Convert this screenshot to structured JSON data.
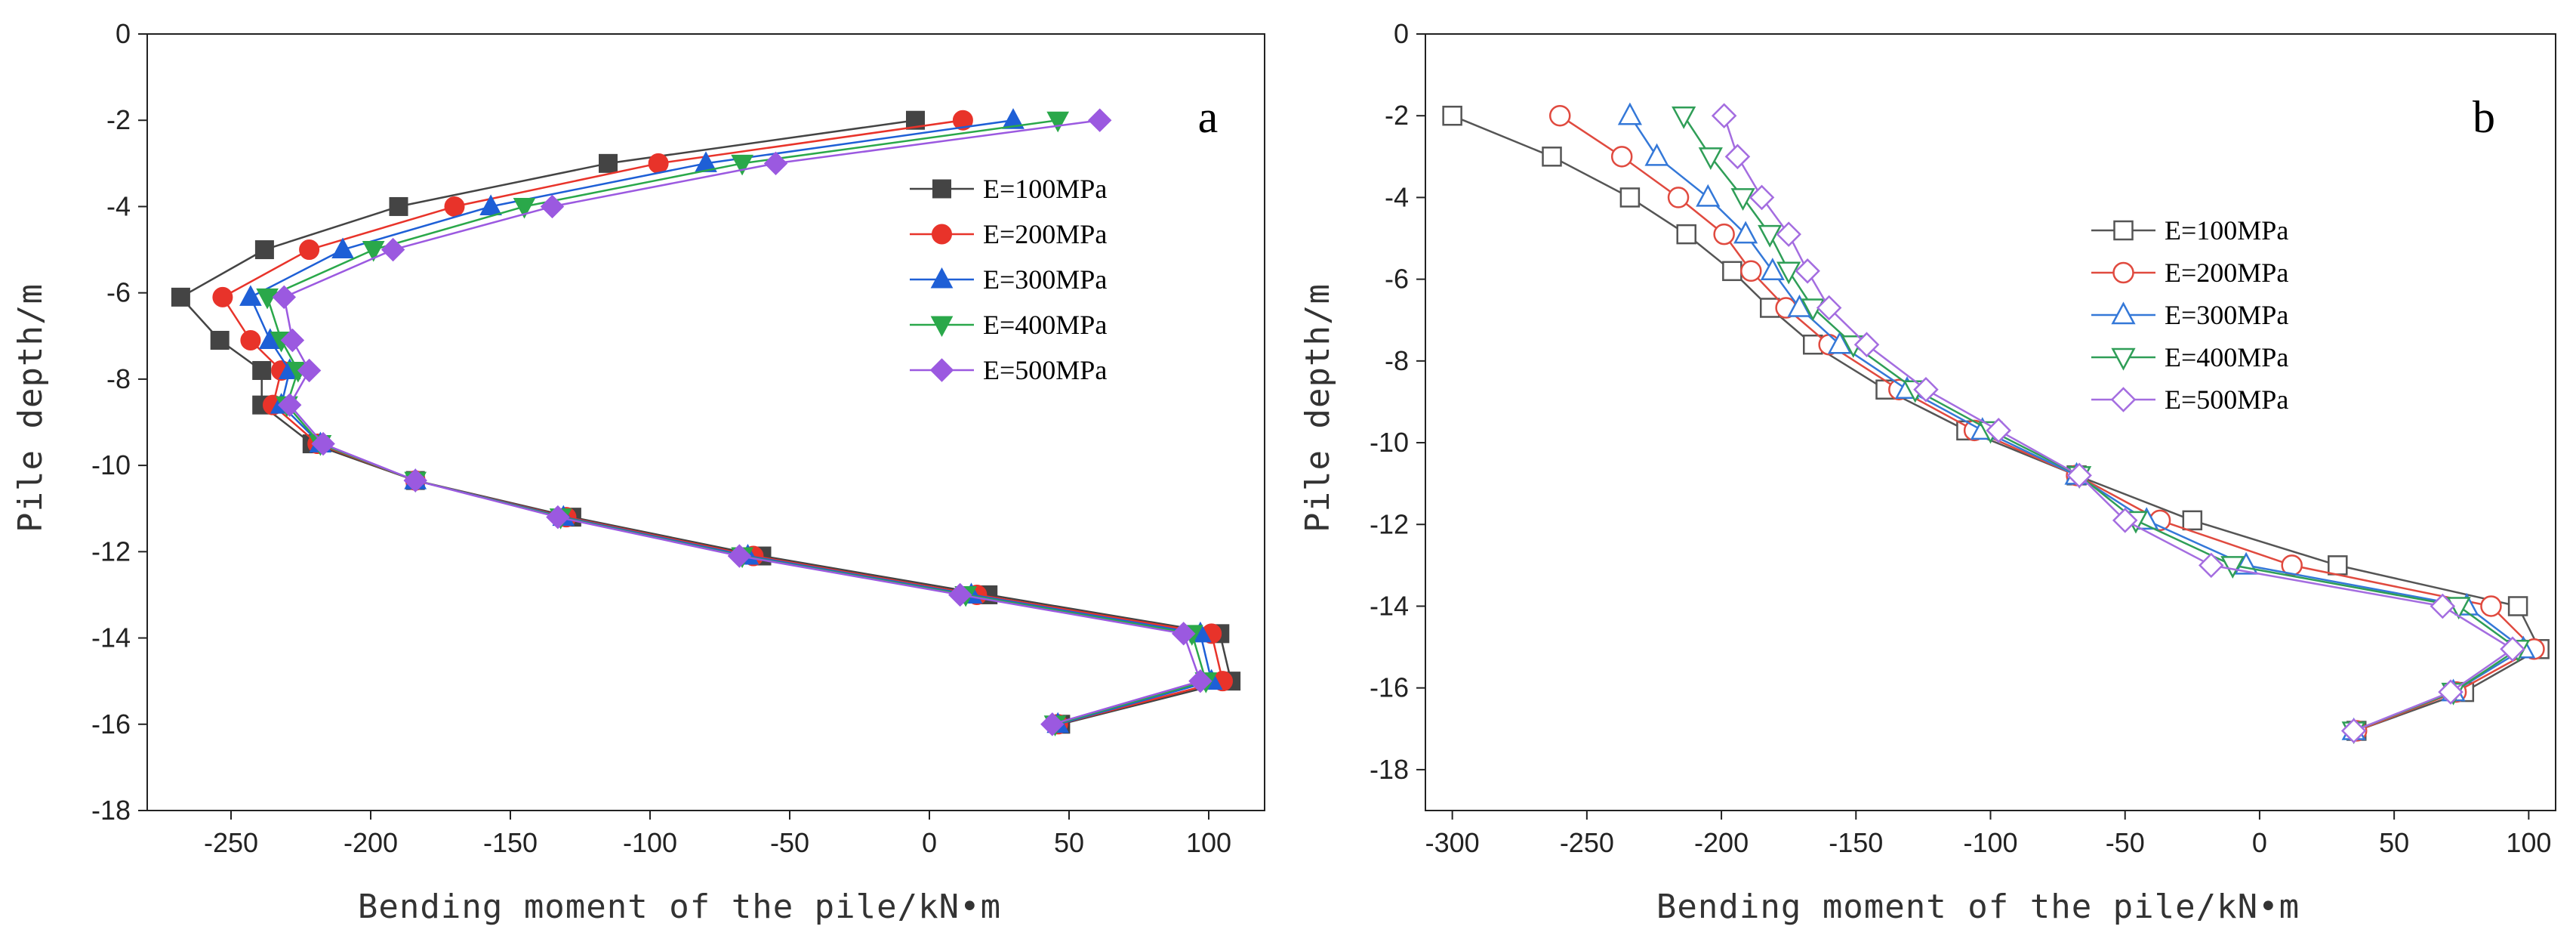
{
  "chart_data": [
    {
      "type": "line",
      "panel_label": "a",
      "xlabel": "Bending moment of the pile/kN•m",
      "ylabel": "Pile depth/m",
      "xlim": [
        -280,
        120
      ],
      "ylim": [
        -18,
        0
      ],
      "xticks": [
        -250,
        -200,
        -150,
        -100,
        -50,
        0,
        50,
        100
      ],
      "xtick_labels": [
        "-250",
        "-200",
        "-150",
        "-100",
        "-50",
        "0",
        "50",
        "100"
      ],
      "yticks": [
        0,
        -2,
        -4,
        -6,
        -8,
        -10,
        -12,
        -14,
        -16,
        -18
      ],
      "ytick_labels": [
        "0",
        "-2",
        "-4",
        "-6",
        "-8",
        "-10",
        "-12",
        "-14",
        "-16",
        "-18"
      ],
      "legend_position": "upper-right",
      "marker_fill": true,
      "series": [
        {
          "name": "E=100MPa",
          "color": "#444444",
          "marker": "square",
          "points": [
            [
              -5,
              -2
            ],
            [
              -115,
              -3
            ],
            [
              -190,
              -4
            ],
            [
              -238,
              -5
            ],
            [
              -268,
              -6.1
            ],
            [
              -254,
              -7.1
            ],
            [
              -239,
              -7.8
            ],
            [
              -239,
              -8.6
            ],
            [
              -221,
              -9.5
            ],
            [
              -184,
              -10.35
            ],
            [
              -128,
              -11.2
            ],
            [
              -60,
              -12.1
            ],
            [
              21,
              -13
            ],
            [
              104,
              -13.9
            ],
            [
              108,
              -15
            ],
            [
              47,
              -16
            ]
          ]
        },
        {
          "name": "E=200MPa",
          "color": "#e8332a",
          "marker": "circle",
          "points": [
            [
              12,
              -2
            ],
            [
              -97,
              -3
            ],
            [
              -170,
              -4
            ],
            [
              -222,
              -5
            ],
            [
              -253,
              -6.1
            ],
            [
              -243,
              -7.1
            ],
            [
              -232,
              -7.8
            ],
            [
              -235,
              -8.6
            ],
            [
              -219,
              -9.5
            ],
            [
              -184,
              -10.35
            ],
            [
              -130,
              -11.2
            ],
            [
              -63,
              -12.1
            ],
            [
              17,
              -13
            ],
            [
              101,
              -13.9
            ],
            [
              105,
              -15
            ],
            [
              46,
              -16
            ]
          ]
        },
        {
          "name": "E=300MPa",
          "color": "#1e5fd6",
          "marker": "triangle-up",
          "points": [
            [
              30,
              -2
            ],
            [
              -80,
              -3
            ],
            [
              -157,
              -4
            ],
            [
              -210,
              -5
            ],
            [
              -243,
              -6.1
            ],
            [
              -236,
              -7.1
            ],
            [
              -229,
              -7.8
            ],
            [
              -232,
              -8.6
            ],
            [
              -218,
              -9.5
            ],
            [
              -184,
              -10.35
            ],
            [
              -131,
              -11.2
            ],
            [
              -65,
              -12.1
            ],
            [
              15,
              -13
            ],
            [
              97,
              -13.9
            ],
            [
              101,
              -15
            ],
            [
              46,
              -16
            ]
          ]
        },
        {
          "name": "E=400MPa",
          "color": "#2aa84a",
          "marker": "triangle-down",
          "points": [
            [
              46,
              -2
            ],
            [
              -67,
              -3
            ],
            [
              -145,
              -4
            ],
            [
              -199,
              -5
            ],
            [
              -237,
              -6.1
            ],
            [
              -232,
              -7.1
            ],
            [
              -226,
              -7.8
            ],
            [
              -230,
              -8.6
            ],
            [
              -218,
              -9.5
            ],
            [
              -184,
              -10.35
            ],
            [
              -132,
              -11.2
            ],
            [
              -67,
              -12.1
            ],
            [
              13,
              -13
            ],
            [
              94,
              -13.9
            ],
            [
              99,
              -15
            ],
            [
              45,
              -16
            ]
          ]
        },
        {
          "name": "E=500MPa",
          "color": "#9b59e0",
          "marker": "diamond",
          "points": [
            [
              61,
              -2
            ],
            [
              -55,
              -3
            ],
            [
              -135,
              -4
            ],
            [
              -192,
              -5
            ],
            [
              -231,
              -6.1
            ],
            [
              -228,
              -7.1
            ],
            [
              -222,
              -7.8
            ],
            [
              -229,
              -8.6
            ],
            [
              -217,
              -9.5
            ],
            [
              -184,
              -10.35
            ],
            [
              -133,
              -11.2
            ],
            [
              -68,
              -12.1
            ],
            [
              11,
              -13
            ],
            [
              91,
              -13.9
            ],
            [
              97,
              -15
            ],
            [
              44,
              -16
            ]
          ]
        }
      ]
    },
    {
      "type": "line",
      "panel_label": "b",
      "xlabel": "Bending moment of the pile/kN•m",
      "ylabel": "Pile depth/m",
      "xlim": [
        -310,
        110
      ],
      "ylim": [
        -19,
        0
      ],
      "xticks": [
        -300,
        -250,
        -200,
        -150,
        -100,
        -50,
        0,
        50,
        100
      ],
      "xtick_labels": [
        "-300",
        "-250",
        "-200",
        "-150",
        "-100",
        "-50",
        "0",
        "50",
        "100"
      ],
      "yticks": [
        0,
        -2,
        -4,
        -6,
        -8,
        -10,
        -12,
        -14,
        -16,
        -18
      ],
      "ytick_labels": [
        "0",
        "-2",
        "-4",
        "-6",
        "-8",
        "-10",
        "-12",
        "-14",
        "-16",
        "-18"
      ],
      "legend_position": "center",
      "marker_fill": false,
      "series": [
        {
          "name": "E=100MPa",
          "color": "#555555",
          "marker": "square",
          "points": [
            [
              -300,
              -2
            ],
            [
              -263,
              -3
            ],
            [
              -234,
              -4
            ],
            [
              -213,
              -4.9
            ],
            [
              -196,
              -5.8
            ],
            [
              -182,
              -6.7
            ],
            [
              -166,
              -7.6
            ],
            [
              -139,
              -8.7
            ],
            [
              -109,
              -9.7
            ],
            [
              -68,
              -10.8
            ],
            [
              -25,
              -11.9
            ],
            [
              29,
              -13
            ],
            [
              96,
              -14
            ],
            [
              104,
              -15.05
            ],
            [
              76,
              -16.1
            ],
            [
              36,
              -17.05
            ]
          ]
        },
        {
          "name": "E=200MPa",
          "color": "#e04a3f",
          "marker": "circle",
          "points": [
            [
              -260,
              -2
            ],
            [
              -237,
              -3
            ],
            [
              -216,
              -4
            ],
            [
              -199,
              -4.9
            ],
            [
              -189,
              -5.8
            ],
            [
              -176,
              -6.7
            ],
            [
              -160,
              -7.6
            ],
            [
              -134,
              -8.7
            ],
            [
              -106,
              -9.7
            ],
            [
              -68,
              -10.8
            ],
            [
              -37,
              -11.9
            ],
            [
              12,
              -13
            ],
            [
              86,
              -14
            ],
            [
              102,
              -15.05
            ],
            [
              73,
              -16.1
            ],
            [
              36,
              -17.05
            ]
          ]
        },
        {
          "name": "E=300MPa",
          "color": "#3478d8",
          "marker": "triangle-up",
          "points": [
            [
              -234,
              -2
            ],
            [
              -224,
              -3
            ],
            [
              -205,
              -4
            ],
            [
              -191,
              -4.9
            ],
            [
              -181,
              -5.8
            ],
            [
              -171,
              -6.7
            ],
            [
              -156,
              -7.6
            ],
            [
              -131,
              -8.7
            ],
            [
              -103,
              -9.7
            ],
            [
              -68,
              -10.8
            ],
            [
              -42,
              -11.9
            ],
            [
              -5,
              -13
            ],
            [
              77,
              -14
            ],
            [
              98,
              -15.05
            ],
            [
              72,
              -16.1
            ],
            [
              35,
              -17.05
            ]
          ]
        },
        {
          "name": "E=400MPa",
          "color": "#2f9e57",
          "marker": "triangle-down",
          "points": [
            [
              -214,
              -2
            ],
            [
              -204,
              -3
            ],
            [
              -192,
              -4
            ],
            [
              -182,
              -4.9
            ],
            [
              -175,
              -5.8
            ],
            [
              -166,
              -6.7
            ],
            [
              -151,
              -7.6
            ],
            [
              -128,
              -8.7
            ],
            [
              -100,
              -9.7
            ],
            [
              -67,
              -10.8
            ],
            [
              -46,
              -11.9
            ],
            [
              -10,
              -13
            ],
            [
              74,
              -14
            ],
            [
              96,
              -15.05
            ],
            [
              72,
              -16.1
            ],
            [
              35,
              -17.05
            ]
          ]
        },
        {
          "name": "E=500MPa",
          "color": "#a46de0",
          "marker": "diamond",
          "points": [
            [
              -199,
              -2
            ],
            [
              -194,
              -3
            ],
            [
              -185,
              -4
            ],
            [
              -175,
              -4.9
            ],
            [
              -168,
              -5.8
            ],
            [
              -160,
              -6.7
            ],
            [
              -146,
              -7.6
            ],
            [
              -124,
              -8.7
            ],
            [
              -97,
              -9.7
            ],
            [
              -67,
              -10.8
            ],
            [
              -50,
              -11.9
            ],
            [
              -18,
              -13
            ],
            [
              68,
              -14
            ],
            [
              94,
              -15.05
            ],
            [
              71,
              -16.1
            ],
            [
              35,
              -17.05
            ]
          ]
        }
      ]
    }
  ]
}
